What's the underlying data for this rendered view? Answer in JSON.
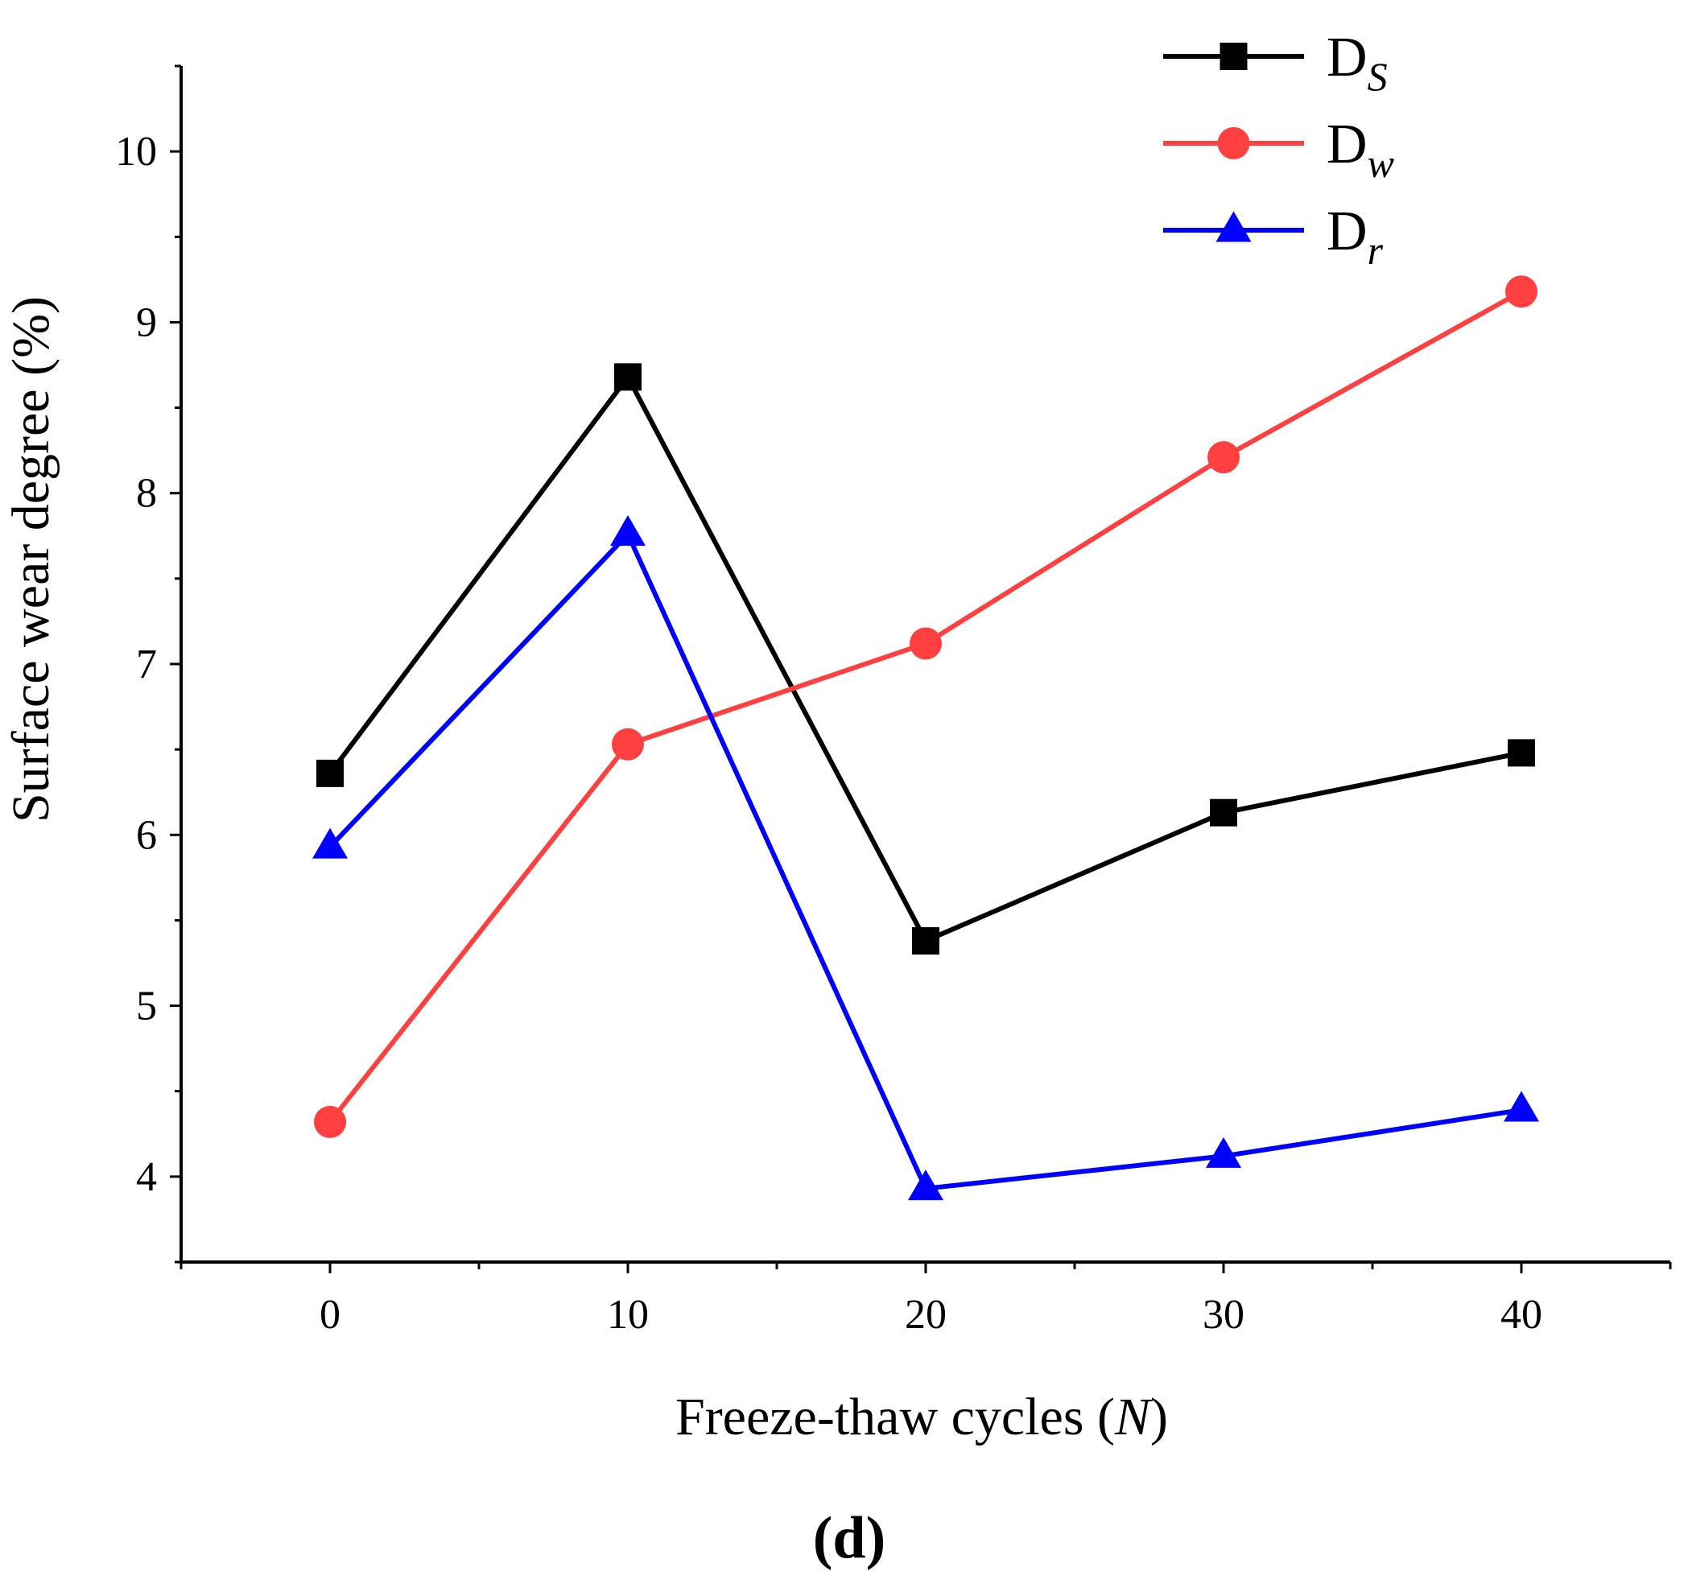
{
  "chart_data": {
    "type": "line",
    "title": "",
    "panel_label": "(d)",
    "xlabel": "Freeze-thaw cycles (N)",
    "xlabel_parts": {
      "before": "Freeze-thaw cycles (",
      "italic": "N",
      "after": ")"
    },
    "ylabel": "Surface wear degree (%)",
    "x": [
      0,
      10,
      20,
      30,
      40
    ],
    "xlim": [
      -5,
      45
    ],
    "ylim": [
      3.5,
      10.5
    ],
    "xticks": [
      0,
      10,
      20,
      30,
      40
    ],
    "xticks_minor": [
      -5,
      5,
      15,
      25,
      35,
      45
    ],
    "yticks": [
      4,
      5,
      6,
      7,
      8,
      9,
      10
    ],
    "yticks_minor": [
      3.5,
      4.5,
      5.5,
      6.5,
      7.5,
      8.5,
      9.5,
      10.5
    ],
    "grid": false,
    "legend_position": "top-right",
    "series": [
      {
        "name": "D_S",
        "label_main": "D",
        "label_sub": "S",
        "color": "#000000",
        "marker": "square",
        "values": [
          6.36,
          8.68,
          5.38,
          6.13,
          6.48
        ]
      },
      {
        "name": "D_w",
        "label_main": "D",
        "label_sub": "w",
        "color": "#FF4040",
        "marker": "circle",
        "values": [
          4.32,
          6.53,
          7.12,
          8.21,
          9.18
        ]
      },
      {
        "name": "D_r",
        "label_main": "D",
        "label_sub": "r",
        "color": "#0000FF",
        "marker": "triangle",
        "values": [
          5.93,
          7.76,
          3.93,
          4.12,
          4.39
        ]
      }
    ]
  }
}
